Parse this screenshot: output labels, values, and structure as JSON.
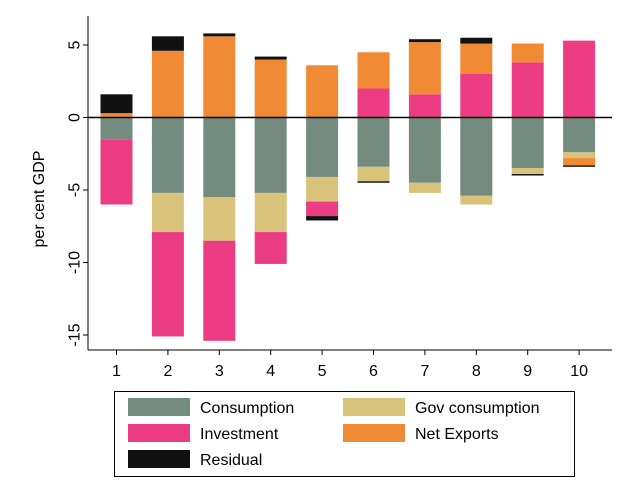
{
  "chart_data": {
    "type": "bar",
    "stacked": true,
    "title": "",
    "xlabel": "",
    "ylabel": "per cent GDP",
    "categories": [
      "1",
      "2",
      "3",
      "4",
      "5",
      "6",
      "7",
      "8",
      "9",
      "10"
    ],
    "ylim": [
      -16,
      7
    ],
    "yticks": [
      5,
      0,
      -5,
      -10,
      -15
    ],
    "grid": false,
    "legend_position": "bottom",
    "series": [
      {
        "name": "Consumption",
        "color": "#748C80",
        "values": [
          -1.5,
          -5.2,
          -5.5,
          -5.2,
          -4.1,
          -3.4,
          -4.5,
          -5.4,
          -3.5,
          -2.4
        ]
      },
      {
        "name": "Gov consumption",
        "color": "#D9C27A",
        "values": [
          0,
          -2.7,
          -3.0,
          -2.7,
          -1.7,
          -1.0,
          -0.7,
          -0.6,
          -0.4,
          -0.4
        ]
      },
      {
        "name": "Investment",
        "color": "#EC3C83",
        "values": [
          -4.5,
          -7.2,
          -6.9,
          -2.2,
          -1.0,
          2.0,
          1.6,
          3.0,
          3.8,
          5.3
        ]
      },
      {
        "name": "Net Exports",
        "color": "#F08A34",
        "values": [
          0.3,
          4.6,
          5.6,
          4.0,
          3.6,
          2.5,
          3.6,
          2.1,
          1.3,
          -0.5
        ]
      },
      {
        "name": "Residual",
        "color": "#111111",
        "values": [
          1.3,
          1.0,
          0.2,
          0.2,
          -0.3,
          -0.1,
          0.2,
          0.4,
          -0.1,
          -0.1
        ]
      }
    ]
  }
}
